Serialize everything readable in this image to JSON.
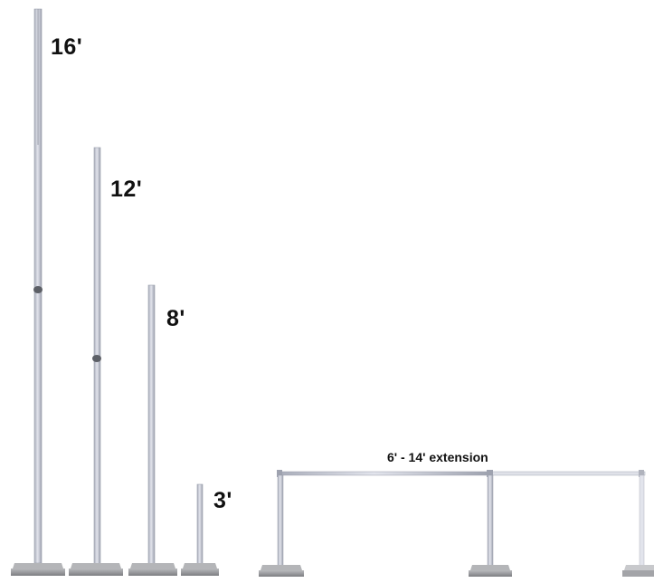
{
  "labels": {
    "pole_16": "16'",
    "pole_12": "12'",
    "pole_8": "8'",
    "pole_3": "3'",
    "extension": "6' - 14' extension"
  },
  "colors": {
    "pole": "#cfd2dc",
    "pole_edge": "#9a9eab",
    "base": "#8e8f92",
    "base_top": "#b4b5b8",
    "knob": "#5c5f66",
    "text": "#111111"
  }
}
